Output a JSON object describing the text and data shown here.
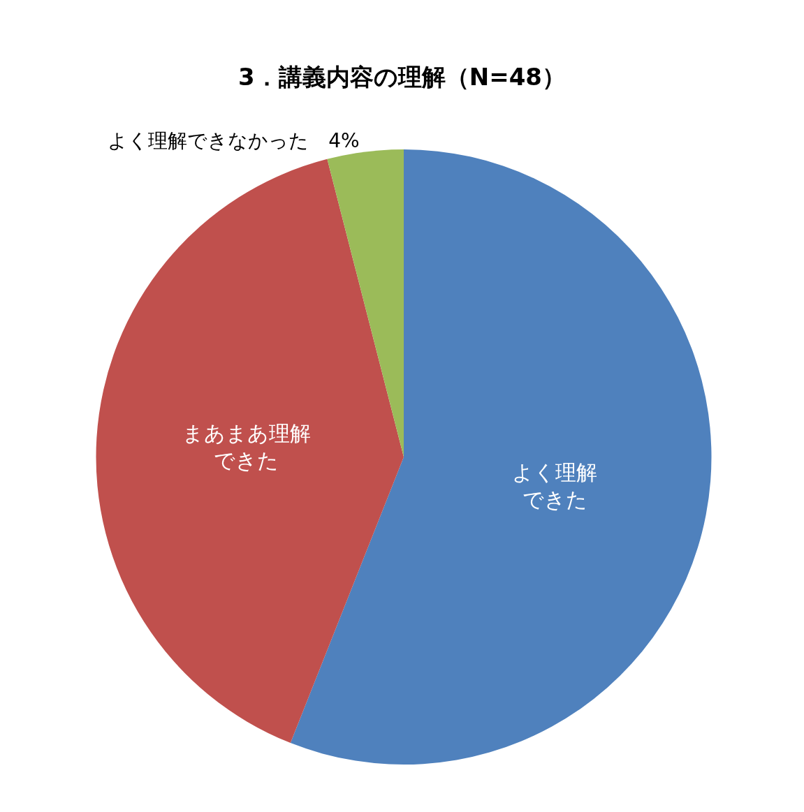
{
  "chart_data": {
    "type": "pie",
    "title": "3．講義内容の理解（N=48）",
    "categories": [
      "よく理解できた",
      "まあまあ理解できた",
      "よく理解できなかった"
    ],
    "values": [
      56,
      40,
      4
    ],
    "colors": [
      "#4f81bd",
      "#c0504d",
      "#9bbb59"
    ],
    "value_labels": [
      null,
      null,
      "4%"
    ],
    "legend": false
  }
}
